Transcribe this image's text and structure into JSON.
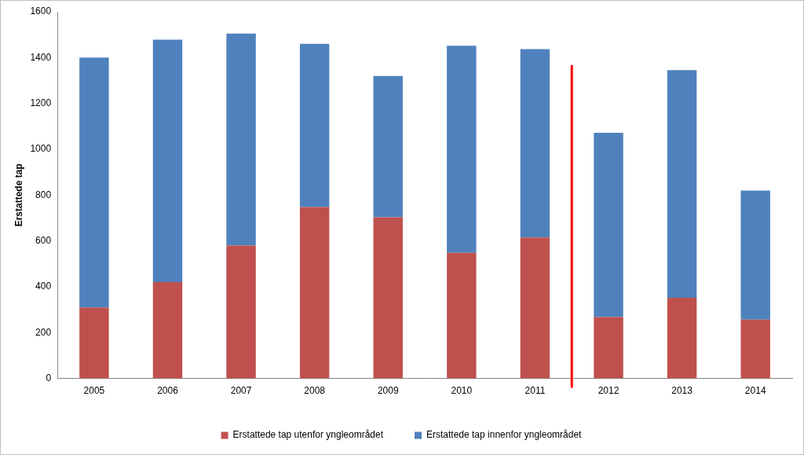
{
  "chart_data": {
    "type": "bar",
    "stacked": true,
    "y_label": "Erstattede tap",
    "categories": [
      "2005",
      "2006",
      "2007",
      "2008",
      "2009",
      "2010",
      "2011",
      "2012",
      "2013",
      "2014"
    ],
    "series": [
      {
        "name": "Erstattede tap utenfor yngleområdet",
        "color": "#c0504d",
        "values": [
          310,
          420,
          580,
          748,
          703,
          548,
          615,
          268,
          352,
          257
        ]
      },
      {
        "name": "Erstattede tap innenfor yngleområdet",
        "color": "#4f81bd",
        "values": [
          1090,
          1058,
          925,
          712,
          617,
          904,
          822,
          804,
          993,
          563
        ]
      }
    ],
    "ylim": [
      0,
      1600
    ],
    "yticks": [
      0,
      200,
      400,
      600,
      800,
      1000,
      1200,
      1400,
      1600
    ],
    "grid": false,
    "legend": "bottom",
    "annotations": [
      {
        "type": "vline",
        "between": [
          "2011",
          "2012"
        ],
        "color": "#ff0000"
      }
    ]
  }
}
